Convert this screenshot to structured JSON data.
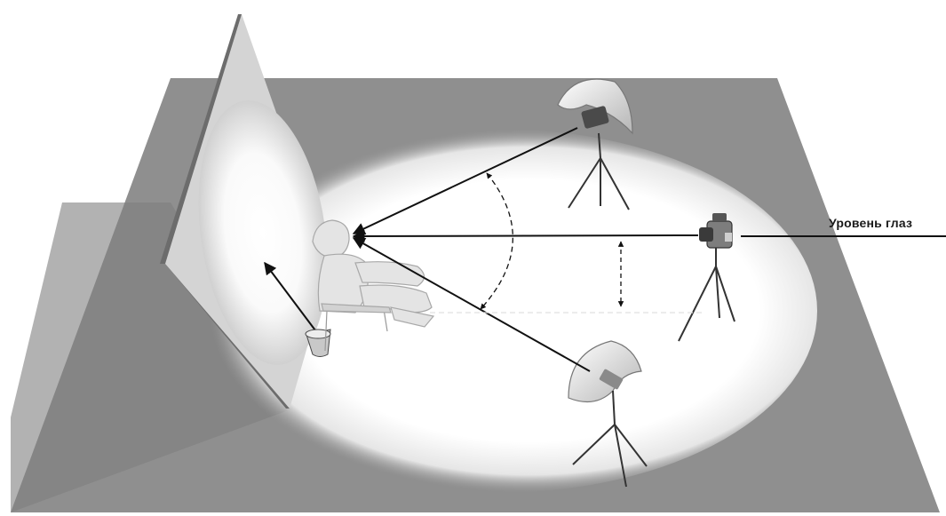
{
  "labels": {
    "eye_level": "Уровень глаз"
  },
  "colors": {
    "floor": "#8f8f8f",
    "background_panel": "#d2d2d2",
    "light_pool": "#ffffff",
    "lines": "#111111"
  },
  "icons": [
    "backdrop-panel",
    "seated-person-icon",
    "background-light-icon",
    "umbrella-light-icon",
    "camera-icon",
    "tripod-icon"
  ]
}
